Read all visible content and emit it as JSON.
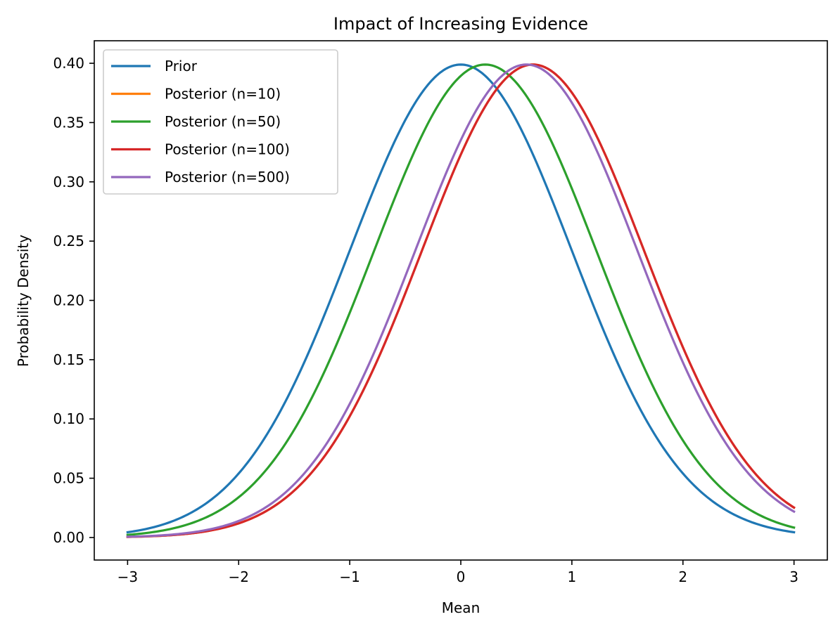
{
  "chart_data": {
    "type": "line",
    "title": "Impact of Increasing Evidence",
    "xlabel": "Mean",
    "ylabel": "Probability Density",
    "xlim": [
      -3.3,
      3.3
    ],
    "ylim": [
      -0.019,
      0.419
    ],
    "x_range": [
      -3,
      3
    ],
    "xticks": [
      -3,
      -2,
      -1,
      0,
      1,
      2,
      3
    ],
    "xtick_labels": [
      "−3",
      "−2",
      "−1",
      "0",
      "1",
      "2",
      "3"
    ],
    "yticks": [
      0.0,
      0.05,
      0.1,
      0.15,
      0.2,
      0.25,
      0.3,
      0.35,
      0.4
    ],
    "ytick_labels": [
      "0.00",
      "0.05",
      "0.10",
      "0.15",
      "0.20",
      "0.25",
      "0.30",
      "0.35",
      "0.40"
    ],
    "grid": false,
    "legend_position": "top-left",
    "series": [
      {
        "name": "Prior",
        "color": "#1f77b4",
        "mean": 0.0,
        "std": 1.0
      },
      {
        "name": "Posterior (n=10)",
        "color": "#ff7f0e",
        "mean": 0.65,
        "std": 1.0
      },
      {
        "name": "Posterior (n=50)",
        "color": "#2ca02c",
        "mean": 0.22,
        "std": 1.0
      },
      {
        "name": "Posterior (n=100)",
        "color": "#d62728",
        "mean": 0.65,
        "std": 1.0
      },
      {
        "name": "Posterior (n=500)",
        "color": "#9467bd",
        "mean": 0.59,
        "std": 1.0
      }
    ]
  }
}
